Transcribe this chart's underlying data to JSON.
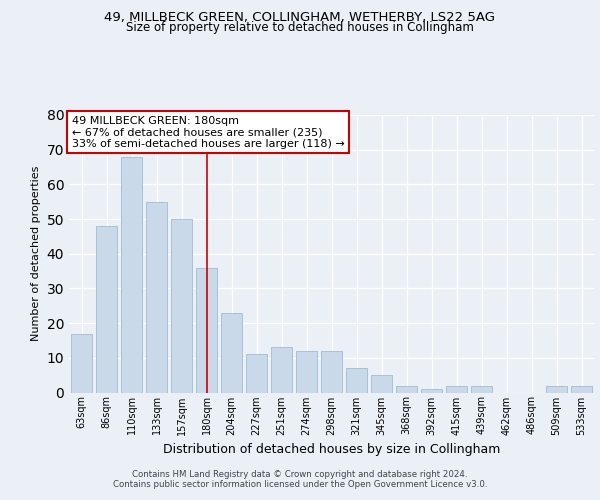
{
  "title1": "49, MILLBECK GREEN, COLLINGHAM, WETHERBY, LS22 5AG",
  "title2": "Size of property relative to detached houses in Collingham",
  "xlabel": "Distribution of detached houses by size in Collingham",
  "ylabel": "Number of detached properties",
  "categories": [
    "63sqm",
    "86sqm",
    "110sqm",
    "133sqm",
    "157sqm",
    "180sqm",
    "204sqm",
    "227sqm",
    "251sqm",
    "274sqm",
    "298sqm",
    "321sqm",
    "345sqm",
    "368sqm",
    "392sqm",
    "415sqm",
    "439sqm",
    "462sqm",
    "486sqm",
    "509sqm",
    "533sqm"
  ],
  "values": [
    17,
    48,
    68,
    55,
    50,
    36,
    23,
    11,
    13,
    12,
    12,
    7,
    5,
    2,
    1,
    2,
    2,
    0,
    0,
    2,
    2
  ],
  "highlight_index": 5,
  "bar_color": "#c9d9ea",
  "bar_edge_color": "#a0bcd4",
  "annotation_text": "49 MILLBECK GREEN: 180sqm\n← 67% of detached houses are smaller (235)\n33% of semi-detached houses are larger (118) →",
  "annotation_box_color": "#ffffff",
  "annotation_box_edge": "#cc0000",
  "vline_color": "#cc0000",
  "footer1": "Contains HM Land Registry data © Crown copyright and database right 2024.",
  "footer2": "Contains public sector information licensed under the Open Government Licence v3.0.",
  "bg_color": "#eaf0f6",
  "plot_bg_color": "#eaf0f6",
  "grid_color": "#ffffff",
  "ylim": [
    0,
    80
  ],
  "yticks": [
    0,
    10,
    20,
    30,
    40,
    50,
    60,
    70,
    80
  ]
}
